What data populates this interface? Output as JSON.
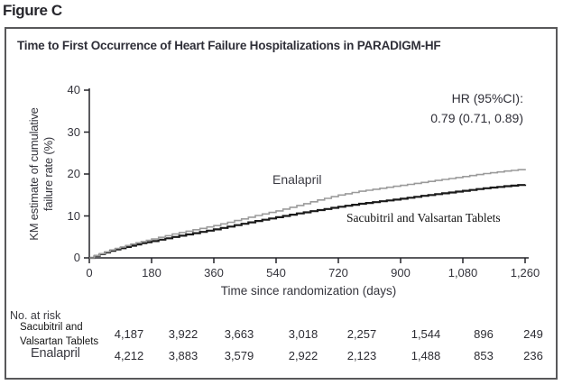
{
  "figure_label": "Figure C",
  "chart": {
    "title": "Time to First Occurrence of Heart Failure Hospitalizations in PARADIGM-HF",
    "hr_line1": "HR (95%CI):",
    "hr_line2": "0.79 (0.71, 0.89)",
    "xlabel": "Time since randomization (days)",
    "ylabel_line1": "KM estimate of cumulative",
    "ylabel_line2": "failure rate (%)"
  },
  "chart_data": {
    "type": "line",
    "subtype": "kaplan-meier-step",
    "title": "Time to First Occurrence of Heart Failure Hospitalizations in PARADIGM-HF",
    "xlabel": "Time since randomization (days)",
    "ylabel": "KM estimate of cumulative failure rate (%)",
    "xlim": [
      0,
      1260
    ],
    "ylim": [
      0,
      40
    ],
    "x_ticks": [
      "0",
      "180",
      "360",
      "540",
      "720",
      "900",
      "1,080",
      "1,260"
    ],
    "x_tick_values": [
      0,
      180,
      360,
      540,
      720,
      900,
      1080,
      1260
    ],
    "y_ticks": [
      "0",
      "10",
      "20",
      "30",
      "40"
    ],
    "y_tick_values": [
      0,
      10,
      20,
      30,
      40
    ],
    "grid": false,
    "annotation": "HR (95%CI): 0.79 (0.71, 0.89)",
    "series": [
      {
        "name": "Sacubitril and Valsartan Tablets",
        "color": "#1a1a1a",
        "stroke_width": 2.2,
        "points": [
          [
            0,
            0
          ],
          [
            30,
            0.9
          ],
          [
            60,
            1.7
          ],
          [
            90,
            2.3
          ],
          [
            120,
            2.9
          ],
          [
            150,
            3.5
          ],
          [
            180,
            4.0
          ],
          [
            240,
            5.0
          ],
          [
            300,
            5.9
          ],
          [
            360,
            6.8
          ],
          [
            420,
            7.8
          ],
          [
            480,
            8.8
          ],
          [
            540,
            9.7
          ],
          [
            600,
            10.6
          ],
          [
            660,
            11.4
          ],
          [
            720,
            12.2
          ],
          [
            780,
            12.9
          ],
          [
            840,
            13.5
          ],
          [
            900,
            14.1
          ],
          [
            960,
            14.8
          ],
          [
            1020,
            15.4
          ],
          [
            1080,
            16.0
          ],
          [
            1140,
            16.6
          ],
          [
            1200,
            17.1
          ],
          [
            1260,
            17.5
          ]
        ]
      },
      {
        "name": "Enalapril",
        "color": "#9b9b9b",
        "stroke_width": 1.6,
        "points": [
          [
            0,
            0
          ],
          [
            30,
            1.0
          ],
          [
            60,
            1.9
          ],
          [
            90,
            2.6
          ],
          [
            120,
            3.3
          ],
          [
            150,
            3.9
          ],
          [
            180,
            4.5
          ],
          [
            240,
            5.7
          ],
          [
            300,
            6.7
          ],
          [
            360,
            7.7
          ],
          [
            420,
            8.9
          ],
          [
            480,
            10.1
          ],
          [
            540,
            11.2
          ],
          [
            600,
            12.5
          ],
          [
            660,
            13.8
          ],
          [
            720,
            15.0
          ],
          [
            780,
            15.9
          ],
          [
            840,
            16.6
          ],
          [
            900,
            17.3
          ],
          [
            960,
            18.0
          ],
          [
            1020,
            18.7
          ],
          [
            1080,
            19.4
          ],
          [
            1140,
            20.1
          ],
          [
            1200,
            20.7
          ],
          [
            1260,
            21.2
          ]
        ]
      }
    ]
  },
  "at_risk": {
    "heading": "No. at risk",
    "rows": [
      {
        "label_lines": [
          "Sacubitril and",
          "Valsartan Tablets"
        ],
        "counts": [
          "4,187",
          "3,922",
          "3,663",
          "3,018",
          "2,257",
          "1,544",
          "896",
          "249"
        ]
      },
      {
        "label_lines": [
          "Enalapril"
        ],
        "counts": [
          "4,212",
          "3,883",
          "3,579",
          "2,922",
          "2,123",
          "1,488",
          "853",
          "236"
        ]
      }
    ]
  }
}
